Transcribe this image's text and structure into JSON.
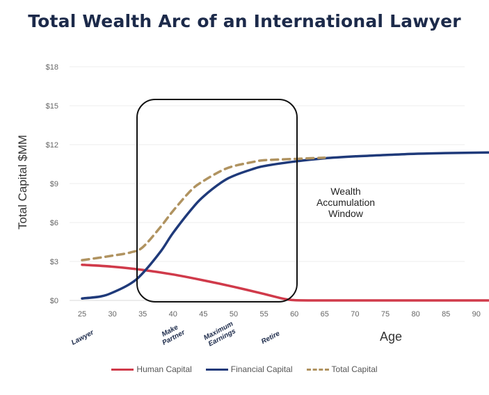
{
  "chart_data": {
    "type": "line",
    "title": "Total Wealth Arc of an International Lawyer",
    "xlabel": "Age",
    "ylabel": "Total Capital $MM",
    "xlim": [
      25,
      92
    ],
    "ylim": [
      0,
      18
    ],
    "x_ticks": [
      25,
      30,
      35,
      40,
      45,
      50,
      55,
      60,
      65,
      70,
      75,
      80,
      85,
      90
    ],
    "y_ticks": [
      0,
      3,
      6,
      9,
      12,
      15,
      18
    ],
    "y_tick_labels": [
      "$0",
      "$3",
      "$6",
      "$9",
      "$12",
      "$15",
      "$18"
    ],
    "grid": "horizontal",
    "legend": "bottom",
    "series": [
      {
        "name": "Human Capital",
        "color": "#d03a4a",
        "style": "solid",
        "points": [
          [
            25,
            2.75
          ],
          [
            30,
            2.6
          ],
          [
            35,
            2.35
          ],
          [
            40,
            2.0
          ],
          [
            45,
            1.55
          ],
          [
            50,
            1.05
          ],
          [
            55,
            0.5
          ],
          [
            58,
            0.15
          ],
          [
            60,
            0.02
          ],
          [
            65,
            0.0
          ],
          [
            70,
            0.0
          ],
          [
            80,
            0.0
          ],
          [
            92,
            0.0
          ]
        ]
      },
      {
        "name": "Financial Capital",
        "color": "#1f3a7a",
        "style": "solid",
        "points": [
          [
            25,
            0.15
          ],
          [
            28,
            0.3
          ],
          [
            30,
            0.6
          ],
          [
            33,
            1.3
          ],
          [
            35,
            2.1
          ],
          [
            38,
            3.8
          ],
          [
            40,
            5.2
          ],
          [
            43,
            7.0
          ],
          [
            45,
            8.0
          ],
          [
            48,
            9.1
          ],
          [
            50,
            9.6
          ],
          [
            53,
            10.1
          ],
          [
            55,
            10.35
          ],
          [
            60,
            10.7
          ],
          [
            65,
            10.95
          ],
          [
            70,
            11.1
          ],
          [
            75,
            11.2
          ],
          [
            80,
            11.3
          ],
          [
            85,
            11.35
          ],
          [
            92,
            11.4
          ]
        ]
      },
      {
        "name": "Total Capital",
        "color": "#b09360",
        "style": "dashed",
        "points": [
          [
            25,
            3.1
          ],
          [
            28,
            3.3
          ],
          [
            30,
            3.45
          ],
          [
            33,
            3.7
          ],
          [
            35,
            4.1
          ],
          [
            38,
            5.7
          ],
          [
            40,
            6.9
          ],
          [
            43,
            8.5
          ],
          [
            45,
            9.2
          ],
          [
            48,
            10.0
          ],
          [
            50,
            10.35
          ],
          [
            53,
            10.65
          ],
          [
            55,
            10.8
          ],
          [
            60,
            10.9
          ],
          [
            65,
            11.0
          ]
        ]
      }
    ],
    "annotations": {
      "window_label": [
        "Wealth",
        "Accumulation",
        "Window"
      ],
      "window_range": [
        34,
        60
      ],
      "milestones": [
        {
          "age": 25,
          "lines": [
            "Lawyer"
          ]
        },
        {
          "age": 40,
          "lines": [
            "Make",
            "Partner"
          ]
        },
        {
          "age": 48,
          "lines": [
            "Maximum",
            "Earnings"
          ]
        },
        {
          "age": 56,
          "lines": [
            "Retire"
          ]
        }
      ]
    }
  }
}
